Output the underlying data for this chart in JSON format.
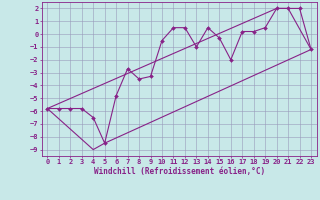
{
  "xlabel": "Windchill (Refroidissement éolien,°C)",
  "xlim": [
    -0.5,
    23.5
  ],
  "ylim": [
    -9.5,
    2.5
  ],
  "xticks": [
    0,
    1,
    2,
    3,
    4,
    5,
    6,
    7,
    8,
    9,
    10,
    11,
    12,
    13,
    14,
    15,
    16,
    17,
    18,
    19,
    20,
    21,
    22,
    23
  ],
  "yticks": [
    2,
    1,
    0,
    -1,
    -2,
    -3,
    -4,
    -5,
    -6,
    -7,
    -8,
    -9
  ],
  "bg_color": "#c8e8e8",
  "grid_color": "#9999bb",
  "line_color": "#882288",
  "data_line": {
    "x": [
      0,
      1,
      2,
      3,
      4,
      5,
      6,
      7,
      8,
      9,
      10,
      11,
      12,
      13,
      14,
      15,
      16,
      17,
      18,
      19,
      20,
      21,
      22,
      23
    ],
    "y": [
      -5.8,
      -5.8,
      -5.8,
      -5.8,
      -6.5,
      -8.5,
      -4.8,
      -2.7,
      -3.5,
      -3.3,
      -0.5,
      0.5,
      0.5,
      -1.0,
      0.5,
      -0.3,
      -2.0,
      0.2,
      0.2,
      0.5,
      2.0,
      2.0,
      2.0,
      -1.2
    ]
  },
  "lower_line": {
    "x": [
      0,
      4,
      5,
      23
    ],
    "y": [
      -5.8,
      -9.0,
      -8.5,
      -1.2
    ]
  },
  "upper_line": {
    "x": [
      0,
      20,
      21,
      23
    ],
    "y": [
      -5.8,
      2.0,
      2.0,
      -1.2
    ]
  },
  "tick_fontsize": 5.0,
  "xlabel_fontsize": 5.5,
  "line_width": 0.8,
  "marker_size": 2.0
}
